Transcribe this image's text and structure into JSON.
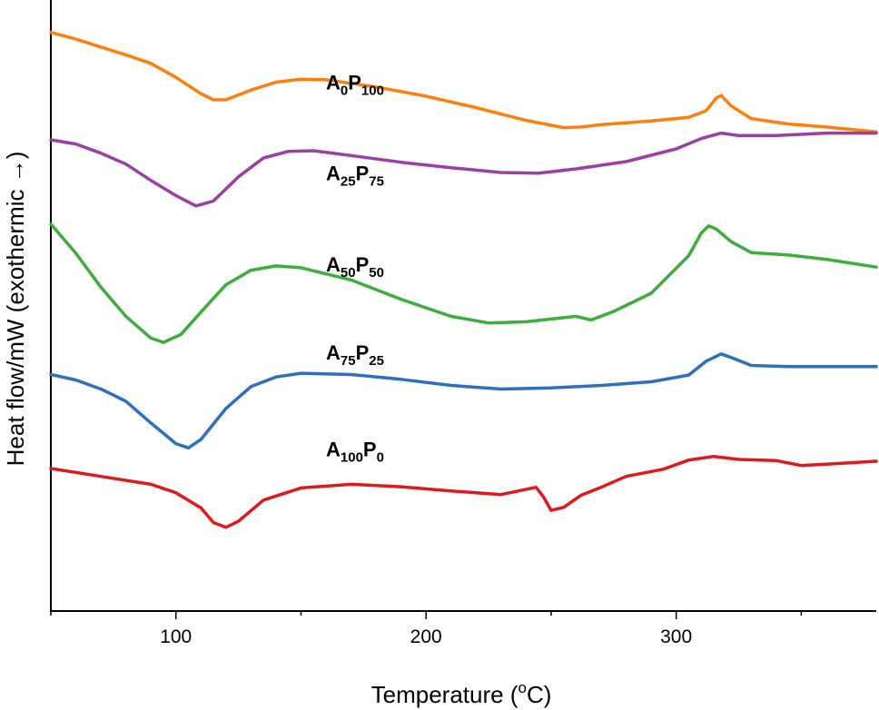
{
  "chart_data": {
    "type": "line",
    "title": "",
    "xlabel": "Temperature (°C)",
    "xlabel_parts": {
      "prefix": "Temperature (",
      "superscript": "o",
      "suffix": "C)"
    },
    "ylabel": "Heat flow/mW (exothermic →)",
    "xlim": [
      50,
      380
    ],
    "ylim": [
      0,
      100
    ],
    "xticks": [
      100,
      200,
      300
    ],
    "grid": false,
    "y_units": "arbitrary (offset, exothermic up)",
    "series": [
      {
        "name": "A0P100",
        "label_parts": [
          [
            "A",
            ""
          ],
          [
            "0",
            "sub"
          ],
          [
            "P",
            ""
          ],
          [
            "100",
            "sub"
          ]
        ],
        "label_x": 160,
        "label_y": 86,
        "color": "#ff7f0e",
        "points": [
          [
            50,
            95.4
          ],
          [
            60,
            94.3
          ],
          [
            70,
            93.0
          ],
          [
            80,
            91.7
          ],
          [
            90,
            90.3
          ],
          [
            100,
            88.0
          ],
          [
            110,
            85.3
          ],
          [
            115,
            84.3
          ],
          [
            120,
            84.3
          ],
          [
            130,
            85.9
          ],
          [
            140,
            87.2
          ],
          [
            150,
            87.7
          ],
          [
            160,
            87.6
          ],
          [
            180,
            86.4
          ],
          [
            200,
            84.9
          ],
          [
            220,
            83.0
          ],
          [
            240,
            80.9
          ],
          [
            255,
            79.7
          ],
          [
            262,
            79.8
          ],
          [
            270,
            80.2
          ],
          [
            290,
            80.8
          ],
          [
            305,
            81.4
          ],
          [
            312,
            82.5
          ],
          [
            316,
            84.6
          ],
          [
            318,
            85.0
          ],
          [
            322,
            83.3
          ],
          [
            330,
            81.2
          ],
          [
            345,
            80.3
          ],
          [
            360,
            79.8
          ],
          [
            380,
            79.0
          ]
        ]
      },
      {
        "name": "A25P75",
        "label_parts": [
          [
            "A",
            ""
          ],
          [
            "25",
            "sub"
          ],
          [
            "P",
            ""
          ],
          [
            "75",
            "sub"
          ]
        ],
        "label_x": 160,
        "label_y": 71,
        "color": "#9b3fa6",
        "points": [
          [
            50,
            77.7
          ],
          [
            60,
            77.0
          ],
          [
            70,
            75.5
          ],
          [
            80,
            73.7
          ],
          [
            90,
            71.0
          ],
          [
            100,
            68.5
          ],
          [
            108,
            66.8
          ],
          [
            115,
            67.6
          ],
          [
            125,
            71.6
          ],
          [
            135,
            74.7
          ],
          [
            145,
            75.8
          ],
          [
            155,
            75.9
          ],
          [
            170,
            75.1
          ],
          [
            190,
            74.0
          ],
          [
            210,
            73.1
          ],
          [
            230,
            72.3
          ],
          [
            245,
            72.2
          ],
          [
            260,
            72.9
          ],
          [
            280,
            74.1
          ],
          [
            300,
            76.2
          ],
          [
            310,
            77.9
          ],
          [
            318,
            78.8
          ],
          [
            325,
            78.4
          ],
          [
            340,
            78.4
          ],
          [
            360,
            78.8
          ],
          [
            380,
            78.8
          ]
        ]
      },
      {
        "name": "A50P50",
        "label_parts": [
          [
            "A",
            ""
          ],
          [
            "50",
            "sub"
          ],
          [
            "P",
            ""
          ],
          [
            "50",
            "sub"
          ]
        ],
        "label_x": 160,
        "label_y": 56,
        "color": "#3cae3c",
        "points": [
          [
            50,
            63.8
          ],
          [
            60,
            59.0
          ],
          [
            70,
            53.4
          ],
          [
            80,
            48.6
          ],
          [
            90,
            45.0
          ],
          [
            95,
            44.3
          ],
          [
            102,
            45.6
          ],
          [
            110,
            49.3
          ],
          [
            120,
            53.8
          ],
          [
            130,
            56.2
          ],
          [
            140,
            56.9
          ],
          [
            150,
            56.6
          ],
          [
            170,
            54.6
          ],
          [
            190,
            51.4
          ],
          [
            210,
            48.6
          ],
          [
            225,
            47.5
          ],
          [
            240,
            47.7
          ],
          [
            260,
            48.6
          ],
          [
            266,
            48.0
          ],
          [
            275,
            49.4
          ],
          [
            290,
            52.4
          ],
          [
            305,
            58.6
          ],
          [
            310,
            62.3
          ],
          [
            313,
            63.5
          ],
          [
            316,
            63.0
          ],
          [
            322,
            60.9
          ],
          [
            330,
            59.1
          ],
          [
            345,
            58.7
          ],
          [
            360,
            58.0
          ],
          [
            380,
            56.7
          ]
        ]
      },
      {
        "name": "A75P25",
        "label_parts": [
          [
            "A",
            ""
          ],
          [
            "75",
            "sub"
          ],
          [
            "P",
            ""
          ],
          [
            "25",
            "sub"
          ]
        ],
        "label_x": 160,
        "label_y": 41.5,
        "color": "#2e6fbe",
        "points": [
          [
            50,
            39.0
          ],
          [
            60,
            38.1
          ],
          [
            70,
            36.6
          ],
          [
            80,
            34.6
          ],
          [
            90,
            31.0
          ],
          [
            100,
            27.6
          ],
          [
            105,
            26.9
          ],
          [
            110,
            28.3
          ],
          [
            120,
            33.4
          ],
          [
            130,
            37.0
          ],
          [
            140,
            38.6
          ],
          [
            150,
            39.2
          ],
          [
            170,
            39.0
          ],
          [
            190,
            38.2
          ],
          [
            210,
            37.2
          ],
          [
            230,
            36.6
          ],
          [
            250,
            36.8
          ],
          [
            270,
            37.2
          ],
          [
            290,
            37.8
          ],
          [
            305,
            38.9
          ],
          [
            312,
            41.2
          ],
          [
            318,
            42.4
          ],
          [
            322,
            41.8
          ],
          [
            330,
            40.5
          ],
          [
            345,
            40.3
          ],
          [
            380,
            40.3
          ]
        ]
      },
      {
        "name": "A100P0",
        "label_parts": [
          [
            "A",
            ""
          ],
          [
            "100",
            "sub"
          ],
          [
            "P",
            ""
          ],
          [
            "0",
            "sub"
          ]
        ],
        "label_x": 160,
        "label_y": 25.5,
        "color": "#e0191e",
        "points": [
          [
            50,
            23.5
          ],
          [
            70,
            22.2
          ],
          [
            90,
            20.9
          ],
          [
            100,
            19.5
          ],
          [
            110,
            17.0
          ],
          [
            115,
            14.6
          ],
          [
            120,
            13.8
          ],
          [
            125,
            14.8
          ],
          [
            135,
            18.3
          ],
          [
            150,
            20.3
          ],
          [
            170,
            20.9
          ],
          [
            190,
            20.5
          ],
          [
            210,
            19.8
          ],
          [
            230,
            19.2
          ],
          [
            244,
            20.4
          ],
          [
            247,
            18.8
          ],
          [
            250,
            16.6
          ],
          [
            255,
            17.1
          ],
          [
            262,
            19.1
          ],
          [
            270,
            20.4
          ],
          [
            280,
            22.2
          ],
          [
            295,
            23.4
          ],
          [
            305,
            24.9
          ],
          [
            315,
            25.5
          ],
          [
            325,
            25.0
          ],
          [
            340,
            24.8
          ],
          [
            350,
            24.0
          ],
          [
            360,
            24.2
          ],
          [
            380,
            24.7
          ]
        ]
      }
    ]
  }
}
